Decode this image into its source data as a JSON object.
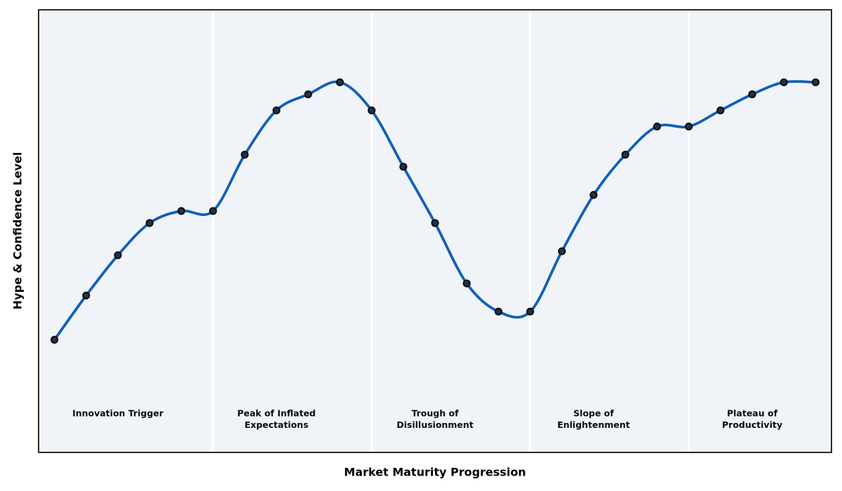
{
  "chart_data": {
    "type": "line",
    "title": "",
    "xlabel": "Market Maturity Progression",
    "ylabel": "Hype & Confidence Level",
    "x": [
      0,
      1,
      2,
      3,
      4,
      5,
      6,
      7,
      8,
      9,
      10,
      11,
      12,
      13,
      14,
      15,
      16,
      17,
      18,
      19,
      20,
      21,
      22,
      23,
      24
    ],
    "y": [
      28,
      39,
      49,
      57,
      60,
      60,
      74,
      85,
      89,
      92,
      85,
      71,
      57,
      42,
      35,
      35,
      50,
      64,
      74,
      81,
      81,
      85,
      89,
      92,
      92
    ],
    "xlim": [
      -0.5,
      24.5
    ],
    "ylim": [
      0,
      110
    ],
    "grid": false,
    "legend": "none",
    "ticks": "none",
    "phase_dividers_x": [
      5,
      10,
      15,
      20
    ],
    "phases": [
      {
        "x": 2,
        "lines": [
          "Innovation Trigger",
          ""
        ]
      },
      {
        "x": 7,
        "lines": [
          "Peak of Inflated",
          "Expectations"
        ]
      },
      {
        "x": 12,
        "lines": [
          "Trough of",
          "Disillusionment"
        ]
      },
      {
        "x": 17,
        "lines": [
          "Slope of",
          "Enlightenment"
        ]
      },
      {
        "x": 22,
        "lines": [
          "Plateau of",
          "Productivity"
        ]
      }
    ],
    "colors": {
      "curve": "#1160b8",
      "marker_fill": "#263140",
      "marker_edge": "#0b0f14",
      "plot_background": "#f0f4f8",
      "divider": "#ffffff",
      "spine": "#2a2a2a",
      "label_text": "#0a0a0a",
      "figure_background": "#ffffff"
    }
  }
}
